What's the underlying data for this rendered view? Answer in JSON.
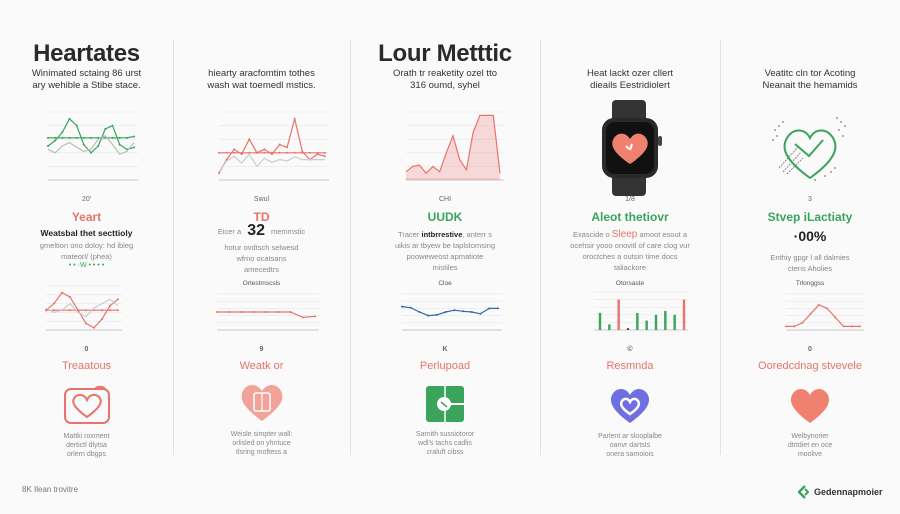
{
  "columns": [
    {
      "title": "Heartates",
      "subtitle": [
        "Winimated sctaing 86 urst",
        "ary wehible a Stibe stace."
      ],
      "axis_label": "20'",
      "heading": "Yeart",
      "bold_line": "Weatsbal thet secttioly",
      "body": [
        "gmeltion ono doloy: hd ibleg",
        "mateorl/ (phea)"
      ],
      "dots_label": "• • ·W •  • • •",
      "chart2_label": "0",
      "heading2": "Treaatous",
      "icon": "heart-photo-icon",
      "body2": [
        "Mattki roxment",
        "dertictl dlytsa",
        "orlern dbgps"
      ]
    },
    {
      "subtitle": [
        "hiearty aracfomtim tothes",
        "wash wat toemedl mstics."
      ],
      "axis_label": "Swul",
      "heading": "TD",
      "value_prefix": "Eicer a",
      "value": "32",
      "value_suffix": "memmstic",
      "body": [
        "hotur ovdtsch selwesd",
        "wfmo ocatsans",
        "amecedtrs"
      ],
      "chart2_title": "Ortestmscsls",
      "chart2_label": "9",
      "heading2": "Weatk or",
      "icon": "heart-card-icon",
      "body2": [
        "Weisle simpter wall:",
        "orlisled on yhntuce",
        "tlsring moftess a"
      ]
    },
    {
      "title": "Lour Metttic",
      "subtitle": [
        "Orath tr reaketity ozel tto",
        "316 oumd, syhel"
      ],
      "axis_label": "CHI",
      "heading": "UUDK",
      "bold_prefix": "Tracer",
      "bold": "intbrrestive",
      "bold_suffix": ", anterr s",
      "body": [
        "uikis ar tbyew be taplstomsing",
        "pooweweost apmatiote",
        "mistiles"
      ],
      "chart2_title": "Cloe",
      "chart2_label": "K",
      "heading2": "Perlupoad",
      "icon": "green-device-icon",
      "body2": [
        "Sarnith sussiotoror",
        "wdl's tachs cadlis",
        "craluft cibss"
      ]
    },
    {
      "subtitle": [
        "Heat lackt ozer cllert",
        "dieails Eestridiolert"
      ],
      "axis_label": "1/8",
      "heading": "Aleot thetiovr",
      "body_prefix": "Exascide o",
      "highlight": "Sleep",
      "body_suffix": "amoot esout a",
      "body": [
        "ocehsir yooo onovitl of care clog vur",
        "oroctches a outsin time docs",
        "taliackore"
      ],
      "chart2_title": "Otorsaste",
      "chart2_label": "©",
      "heading2": "Resmnda",
      "icon": "purple-heart-icon",
      "body2": [
        "Parlent ar slooplalbe",
        "oanvr dartsts",
        "onera samoiois"
      ]
    },
    {
      "subtitle": [
        "Veatitc cln tor Acoting",
        "Neanait the hemamids"
      ],
      "axis_label": "3",
      "heading": "Stvep iLactiaty",
      "value": "·00%",
      "body": [
        "Enthiy gpgr l all dalmies",
        "ctens Aholies"
      ],
      "chart2_title": "Trlonggss",
      "chart2_label": "0",
      "heading2": "Ooredcdnag stvevele",
      "icon": "red-heart-icon",
      "body2": [
        "Welbynorier",
        "dtrtdiet en oce",
        "moolive"
      ]
    }
  ],
  "footer": {
    "left": "8K Ilean trovitre",
    "logo": "Gedennapmoier"
  },
  "colors": {
    "green": "#3aa35c",
    "red": "#e8736a",
    "blue": "#2f6aa3",
    "purple": "#6f6fe0",
    "dark": "#2a2a2a"
  },
  "charts": {
    "c1top": {
      "series": [
        {
          "color": "#3aa35c",
          "values": [
            50,
            42,
            30,
            10,
            20,
            48,
            60,
            50,
            25,
            20,
            48,
            55,
            52
          ]
        },
        {
          "color": "#3aa35c",
          "values": [
            38,
            38,
            38,
            38,
            38,
            38,
            38,
            38,
            38,
            38,
            38,
            38,
            36
          ]
        },
        {
          "color": "#bbbbbb",
          "values": [
            55,
            60,
            50,
            45,
            52,
            58,
            55,
            40,
            35,
            48,
            62,
            58,
            45
          ]
        }
      ]
    },
    "c2top": {
      "series": [
        {
          "color": "#e8736a",
          "values": [
            90,
            70,
            55,
            62,
            40,
            60,
            55,
            62,
            48,
            52,
            10,
            58,
            70,
            62,
            65
          ]
        },
        {
          "color": "#e8736a",
          "values": [
            60,
            60,
            60,
            60,
            60,
            60,
            60,
            60,
            60,
            60,
            60,
            60,
            60,
            60,
            60
          ]
        },
        {
          "color": "#cccccc",
          "values": [
            88,
            72,
            65,
            75,
            62,
            80,
            68,
            74,
            70,
            72,
            66,
            70,
            70,
            70,
            70
          ]
        }
      ]
    },
    "c3top": {
      "series": [
        {
          "color": "#e8736a",
          "values": [
            88,
            80,
            78,
            90,
            80,
            88,
            60,
            35,
            70,
            85,
            30,
            5,
            5,
            5,
            90
          ]
        }
      ]
    },
    "c1mid": {
      "series": [
        {
          "color": "#e8736a",
          "values": [
            55,
            40,
            15,
            25,
            55,
            85,
            95,
            75,
            45,
            30
          ]
        },
        {
          "color": "#e8736a",
          "values": [
            55,
            55,
            55,
            55,
            55,
            55,
            55,
            55,
            55,
            55
          ]
        },
        {
          "color": "#cccccc",
          "values": [
            50,
            60,
            55,
            40,
            60,
            70,
            50,
            40,
            30,
            45
          ]
        }
      ]
    },
    "c2mid": {
      "series": [
        {
          "color": "#e8736a",
          "values": [
            50,
            50,
            50,
            50,
            50,
            50,
            50,
            65,
            62
          ]
        }
      ]
    },
    "c3mid": {
      "series": [
        {
          "color": "#2f6aa3",
          "values": [
            35,
            38,
            50,
            60,
            58,
            50,
            45,
            48,
            50,
            55,
            40,
            40
          ]
        }
      ]
    },
    "c5mid": {
      "series": [
        {
          "color": "#e8736a",
          "values": [
            90,
            90,
            80,
            55,
            30,
            40,
            65,
            90,
            90,
            90
          ]
        }
      ]
    },
    "c4bars": {
      "values": [
        {
          "v": 45,
          "c": "#3aa35c"
        },
        {
          "v": 15,
          "c": "#3aa35c"
        },
        {
          "v": 80,
          "c": "#e8736a"
        },
        {
          "v": 5,
          "c": "#555"
        },
        {
          "v": 45,
          "c": "#3aa35c"
        },
        {
          "v": 25,
          "c": "#3aa35c"
        },
        {
          "v": 40,
          "c": "#3aa35c"
        },
        {
          "v": 50,
          "c": "#3aa35c"
        },
        {
          "v": 40,
          "c": "#3aa35c"
        },
        {
          "v": 80,
          "c": "#e8736a"
        }
      ]
    }
  }
}
